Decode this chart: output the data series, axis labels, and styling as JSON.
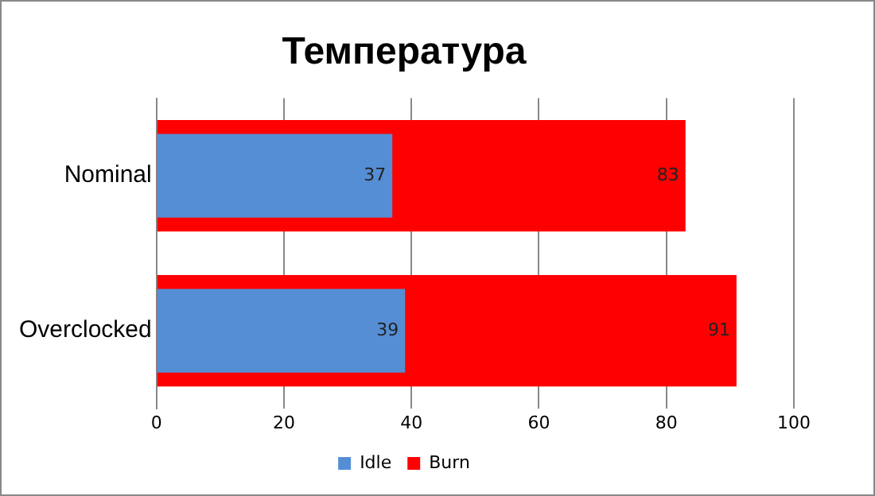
{
  "chart_data": {
    "type": "bar",
    "title": "Температура",
    "orientation": "horizontal",
    "categories": [
      "Nominal",
      "Overclocked"
    ],
    "series": [
      {
        "name": "Idle",
        "color": "#558ed5",
        "values": [
          37,
          39
        ]
      },
      {
        "name": "Burn",
        "color": "#ff0000",
        "values": [
          83,
          91
        ]
      }
    ],
    "xlim": [
      0,
      100
    ],
    "xticks": [
      0,
      20,
      40,
      60,
      80,
      100
    ],
    "grid": "x",
    "legend": "bottom",
    "data_labels": true
  }
}
